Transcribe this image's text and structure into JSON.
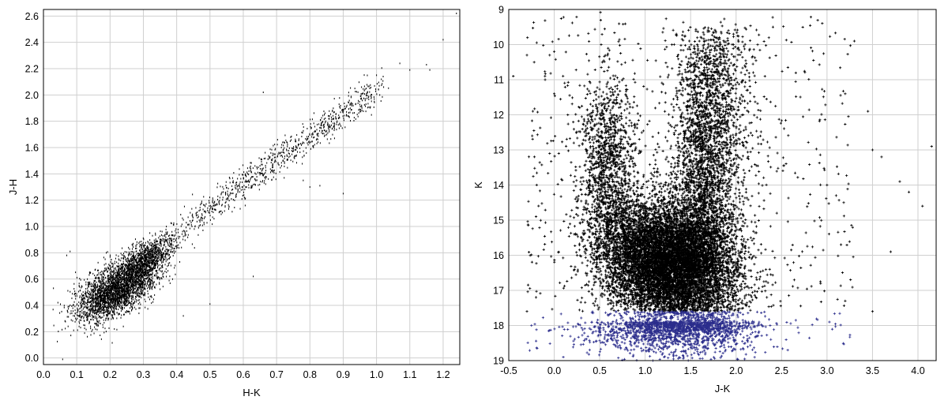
{
  "chart_data": [
    {
      "type": "scatter",
      "title": "",
      "xlabel": "H-K",
      "ylabel": "J-H",
      "xlim": [
        0.0,
        1.25
      ],
      "ylim": [
        -0.05,
        2.65
      ],
      "xticks": [
        "0.0",
        "0.1",
        "0.2",
        "0.3",
        "0.4",
        "0.5",
        "0.6",
        "0.7",
        "0.8",
        "0.9",
        "1.0",
        "1.1",
        "1.2"
      ],
      "yticks": [
        "0.0",
        "0.2",
        "0.4",
        "0.6",
        "0.8",
        "1.0",
        "1.2",
        "1.4",
        "1.6",
        "1.8",
        "2.0",
        "2.2",
        "2.4",
        "2.6"
      ],
      "grid": true,
      "marker": "small dot",
      "color": "#000000",
      "distribution": {
        "main_cluster": {
          "x_center": 0.22,
          "y_center": 0.52,
          "x_spread": 0.06,
          "y_spread": 0.12,
          "approx_points": 3000
        },
        "secondary_cluster": {
          "x_center": 0.31,
          "y_center": 0.75,
          "x_spread": 0.04,
          "y_spread": 0.09,
          "approx_points": 900
        },
        "sequence": {
          "x_range": [
            0.35,
            1.0
          ],
          "y_at_x_0.4": 0.95,
          "y_at_x_1.0": 2.05,
          "approx_points": 900
        }
      },
      "points": [
        [
          0.03,
          0.53
        ],
        [
          0.07,
          0.78
        ],
        [
          0.08,
          0.81
        ],
        [
          0.42,
          0.32
        ],
        [
          0.5,
          0.41
        ],
        [
          0.63,
          0.62
        ],
        [
          0.66,
          2.02
        ],
        [
          0.78,
          1.35
        ],
        [
          0.8,
          1.3
        ],
        [
          0.83,
          1.31
        ],
        [
          0.9,
          1.25
        ],
        [
          1.0,
          2.15
        ],
        [
          1.02,
          2.14
        ],
        [
          1.07,
          2.24
        ],
        [
          1.1,
          2.19
        ],
        [
          1.15,
          2.23
        ],
        [
          1.16,
          2.19
        ],
        [
          1.2,
          2.42
        ],
        [
          1.24,
          2.62
        ]
      ]
    },
    {
      "type": "scatter",
      "title": "",
      "xlabel": "J-K",
      "ylabel": "K",
      "xlim": [
        -0.5,
        4.2
      ],
      "ylim": [
        9,
        19
      ],
      "y_inverted": true,
      "xticks": [
        "-0.5",
        "0.0",
        "0.5",
        "1.0",
        "1.5",
        "2.0",
        "2.5",
        "3.0",
        "3.5",
        "4.0"
      ],
      "yticks": [
        "9",
        "10",
        "11",
        "12",
        "13",
        "14",
        "15",
        "16",
        "17",
        "18",
        "19"
      ],
      "grid": true,
      "marker": "plus",
      "colors": {
        "bright": "#000000",
        "faint": "#2b2d8c"
      },
      "faint_limit_K": 17.6,
      "distribution": {
        "dwarf_bulk": {
          "x_center": 1.2,
          "y_center": 16.3,
          "x_spread": 0.35,
          "y_spread": 0.9,
          "approx_points": 9000
        },
        "giant_branch": {
          "x_range": [
            1.3,
            2.0
          ],
          "y_range": [
            9.5,
            16.5
          ],
          "approx_points": 3500
        },
        "blue_plume": {
          "x_center": 0.6,
          "y_center": 13.5,
          "x_spread": 0.15,
          "y_spread": 1.3,
          "approx_points": 1200
        },
        "faint_tail": {
          "x_center": 1.3,
          "y_center": 18.2,
          "x_spread": 0.45,
          "y_spread": 0.45,
          "approx_points": 1200
        }
      },
      "points": [
        [
          -0.45,
          10.9
        ],
        [
          -0.3,
          10.3
        ],
        [
          -0.2,
          14.9
        ],
        [
          -0.1,
          11.0
        ],
        [
          -0.05,
          10.3
        ],
        [
          -0.05,
          13.1
        ],
        [
          0.0,
          10.2
        ],
        [
          0.0,
          11.4
        ],
        [
          0.05,
          13.1
        ],
        [
          -0.2,
          17.2
        ],
        [
          -0.25,
          18.0
        ],
        [
          -0.3,
          17.6
        ],
        [
          0.1,
          18.9
        ],
        [
          3.0,
          14.0
        ],
        [
          3.1,
          14.3
        ],
        [
          3.2,
          11.4
        ],
        [
          3.3,
          9.9
        ],
        [
          3.45,
          11.9
        ],
        [
          3.5,
          13.0
        ],
        [
          3.6,
          13.2
        ],
        [
          3.7,
          15.9
        ],
        [
          3.8,
          13.9
        ],
        [
          3.9,
          14.2
        ],
        [
          4.05,
          14.6
        ],
        [
          4.15,
          12.9
        ],
        [
          3.5,
          17.6
        ],
        [
          3.2,
          17.3
        ]
      ]
    }
  ]
}
